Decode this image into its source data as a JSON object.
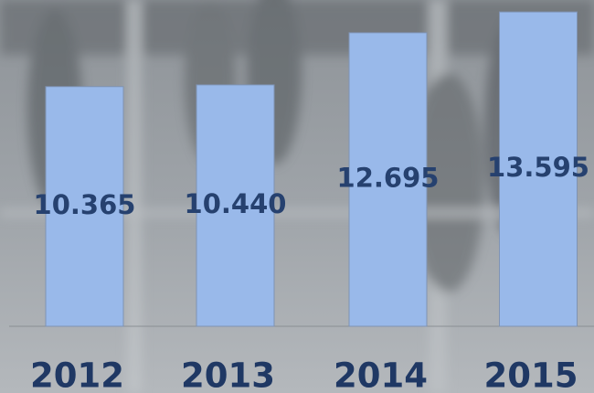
{
  "chart_data": {
    "type": "bar",
    "categories": [
      "2012",
      "2013",
      "2014",
      "2015"
    ],
    "values": [
      10.365,
      10.44,
      12.695,
      13.595
    ],
    "value_labels": [
      "10.365",
      "10.440",
      "12.695",
      "13.595"
    ],
    "color": "#99b9ea"
  }
}
